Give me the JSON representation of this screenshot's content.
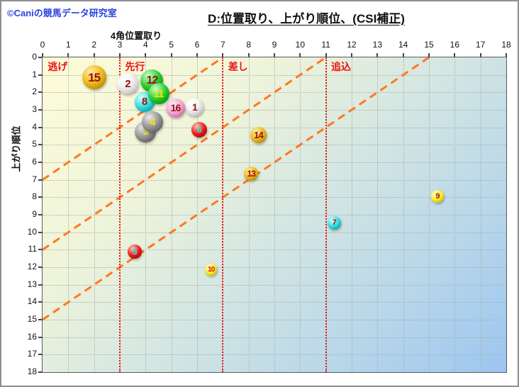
{
  "header": {
    "copyright": "©Caniの競馬データ研究室",
    "title": "D:位置取り、上がり順位、(CSI補正)"
  },
  "colors": {
    "copyright_text": "#2b43e0",
    "title_text": "#111111",
    "zone_label": "#ee1111",
    "zone_line": "#f21111",
    "diagonal_line": "#ff7722",
    "grid_line": "#adadad",
    "plot_bg_top_left": "#fdfcd8",
    "plot_bg_bottom_right": "#9cc6f0"
  },
  "chart_data": {
    "type": "scatter",
    "title": "D:位置取り、上がり順位、(CSI補正)",
    "xlabel": "4角位置取り",
    "ylabel": "上がり順位",
    "xlim": [
      0,
      18
    ],
    "ylim": [
      0,
      18
    ],
    "y_axis_inverted": true,
    "grid": true,
    "x_ticks": [
      0,
      1,
      2,
      3,
      4,
      5,
      6,
      7,
      8,
      9,
      10,
      11,
      12,
      13,
      14,
      15,
      16,
      17,
      18
    ],
    "y_ticks": [
      0,
      1,
      2,
      3,
      4,
      5,
      6,
      7,
      8,
      9,
      10,
      11,
      12,
      13,
      14,
      15,
      16,
      17,
      18
    ],
    "zones": {
      "lines_x": [
        3,
        7,
        11
      ],
      "labels": [
        {
          "text": "逃げ",
          "x": 0.12
        },
        {
          "text": "先行",
          "x": 3.12
        },
        {
          "text": "差し",
          "x": 7.12
        },
        {
          "text": "追込",
          "x": 11.12
        }
      ]
    },
    "diagonal_guides": [
      {
        "x1": 0,
        "y1": 7,
        "x2": 7,
        "y2": 0
      },
      {
        "x1": 0,
        "y1": 11,
        "x2": 11,
        "y2": 0
      },
      {
        "x1": 0,
        "y1": 15,
        "x2": 15,
        "y2": 0
      }
    ],
    "points": [
      {
        "num": "1",
        "x": 5.9,
        "y": 2.85,
        "r": 13,
        "frame_color": "white",
        "num_color": "#991111",
        "z": 7
      },
      {
        "num": "2",
        "x": 3.3,
        "y": 1.5,
        "r": 15,
        "frame_color": "white",
        "num_color": "#991111",
        "z": 1
      },
      {
        "num": "3",
        "x": 4.0,
        "y": 4.25,
        "r": 15,
        "frame_color": "gray",
        "num_color": "#f5e400",
        "z": 5
      },
      {
        "num": "4",
        "x": 4.26,
        "y": 3.7,
        "r": 15,
        "frame_color": "gray",
        "num_color": "#f5e400",
        "z": 6
      },
      {
        "num": "5",
        "x": 3.57,
        "y": 11.1,
        "r": 10,
        "frame_color": "red",
        "num_color": "#22eaea",
        "z": 3
      },
      {
        "num": "6",
        "x": 6.07,
        "y": 4.15,
        "r": 11,
        "frame_color": "red",
        "num_color": "#22eaea",
        "z": 9
      },
      {
        "num": "7",
        "x": 11.32,
        "y": 9.48,
        "r": 9.5,
        "frame_color": "cyan",
        "num_color": "#991111",
        "z": 3
      },
      {
        "num": "8",
        "x": 3.95,
        "y": 2.55,
        "r": 14,
        "frame_color": "cyan",
        "num_color": "#991111",
        "z": 3
      },
      {
        "num": "9",
        "x": 15.33,
        "y": 7.95,
        "r": 9,
        "frame_color": "yellow",
        "num_color": "#991111",
        "z": 3
      },
      {
        "num": "10",
        "x": 6.54,
        "y": 12.15,
        "r": 8.5,
        "frame_color": "yellow",
        "num_color": "#cc1111",
        "z": 3
      },
      {
        "num": "11",
        "x": 4.5,
        "y": 2.08,
        "r": 15,
        "frame_color": "green",
        "num_color": "#f5e400",
        "z": 4
      },
      {
        "num": "12",
        "x": 4.25,
        "y": 1.35,
        "r": 16,
        "frame_color": "green",
        "num_color": "#991111",
        "z": 2
      },
      {
        "num": "13",
        "x": 8.1,
        "y": 6.65,
        "r": 10,
        "frame_color": "gold",
        "num_color": "#991111",
        "z": 3
      },
      {
        "num": "14",
        "x": 8.38,
        "y": 4.43,
        "r": 11.5,
        "frame_color": "gold",
        "num_color": "#991111",
        "z": 3
      },
      {
        "num": "15",
        "x": 2.0,
        "y": 1.15,
        "r": 17,
        "frame_color": "gold",
        "num_color": "#991111",
        "z": 3
      },
      {
        "num": "16",
        "x": 5.16,
        "y": 2.88,
        "r": 13.5,
        "frame_color": "pink",
        "num_color": "#991111",
        "z": 8
      }
    ]
  }
}
